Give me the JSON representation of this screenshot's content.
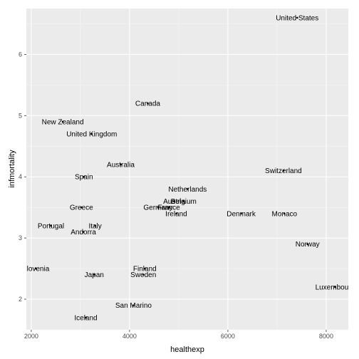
{
  "chart_data": {
    "type": "scatter",
    "title": "",
    "xlabel": "healthexp",
    "ylabel": "infmortality",
    "xlim": [
      1900,
      8450
    ],
    "ylim": [
      1.5,
      6.75
    ],
    "xticks": [
      "2000",
      "4000",
      "6000",
      "8000"
    ],
    "yticks": [
      "2",
      "3",
      "4",
      "5",
      "6"
    ],
    "grid": true,
    "legend": "none",
    "colors": {
      "panel": "#ebebeb",
      "grid_major": "#ffffff",
      "grid_minor": "#f5f5f5",
      "point": "#000000"
    },
    "points": [
      {
        "label": "United States",
        "x": 7410,
        "y": 6.6
      },
      {
        "label": "Canada",
        "x": 4370,
        "y": 5.2
      },
      {
        "label": "New Zealand",
        "x": 2640,
        "y": 4.9
      },
      {
        "label": "United Kingdom",
        "x": 3230,
        "y": 4.7
      },
      {
        "label": "Australia",
        "x": 3820,
        "y": 4.2
      },
      {
        "label": "Switzerland",
        "x": 7130,
        "y": 4.1
      },
      {
        "label": "Spain",
        "x": 3070,
        "y": 4.0
      },
      {
        "label": "Netherlands",
        "x": 5180,
        "y": 3.8
      },
      {
        "label": "Belgium",
        "x": 5100,
        "y": 3.6
      },
      {
        "label": "Austria",
        "x": 4910,
        "y": 3.6
      },
      {
        "label": "Germany",
        "x": 4580,
        "y": 3.5
      },
      {
        "label": "France",
        "x": 4800,
        "y": 3.5
      },
      {
        "label": "Greece",
        "x": 3020,
        "y": 3.5
      },
      {
        "label": "Ireland",
        "x": 4950,
        "y": 3.4
      },
      {
        "label": "Denmark",
        "x": 6270,
        "y": 3.4
      },
      {
        "label": "Monaco",
        "x": 7150,
        "y": 3.4
      },
      {
        "label": "Portugal",
        "x": 2400,
        "y": 3.2
      },
      {
        "label": "Italy",
        "x": 3300,
        "y": 3.2
      },
      {
        "label": "Andorra",
        "x": 3060,
        "y": 3.1
      },
      {
        "label": "Norway",
        "x": 7620,
        "y": 2.9
      },
      {
        "label": "Slovenia",
        "x": 2090,
        "y": 2.5
      },
      {
        "label": "Finland",
        "x": 4310,
        "y": 2.5
      },
      {
        "label": "Japan",
        "x": 3280,
        "y": 2.4
      },
      {
        "label": "Sweden",
        "x": 4280,
        "y": 2.4
      },
      {
        "label": "Luxembourg",
        "x": 8180,
        "y": 2.2
      },
      {
        "label": "San Marino",
        "x": 4080,
        "y": 1.9
      },
      {
        "label": "Iceland",
        "x": 3110,
        "y": 1.7
      }
    ]
  }
}
